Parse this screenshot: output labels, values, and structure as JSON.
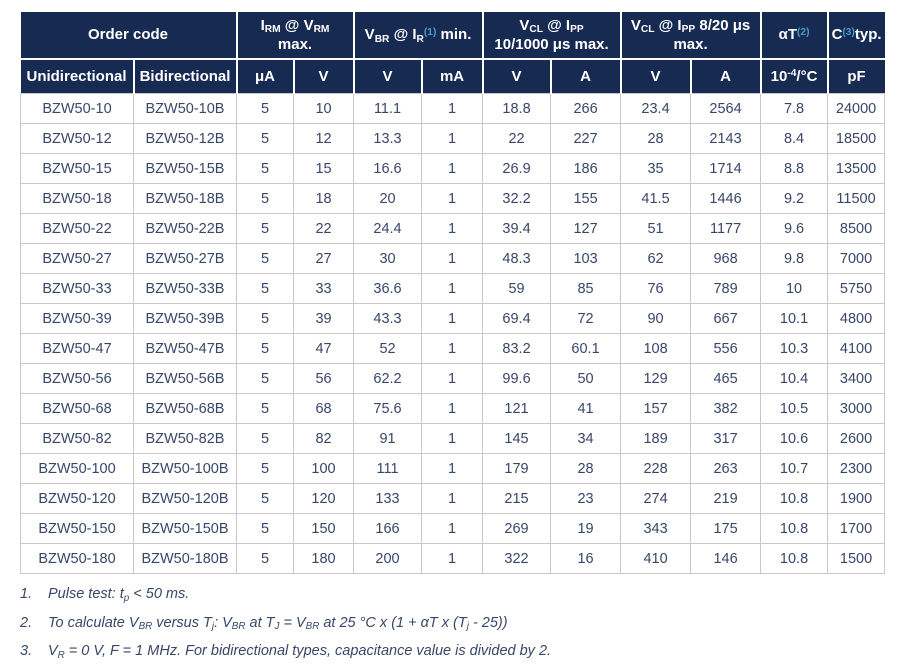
{
  "colors": {
    "header_bg": "#162a52",
    "footnote_ref_blue": "#4a9acd",
    "body_text": "#384668",
    "grid_line": "#c8c8c8"
  },
  "table": {
    "header": {
      "groups": [
        "Order code",
        "I~RM~ @ V~RM~\nmax.",
        "V~BR~ @ I~R~^(1)^ min.",
        "V~CL~ @ I~PP~\n10/1000 μs max.",
        "V~CL~ @ I~PP~ 8/20 μs\nmax.",
        "αT^(2)^",
        "C^(3)^typ."
      ],
      "units": [
        "Unidirectional",
        "Bidirectional",
        "μA",
        "V",
        "V",
        "mA",
        "V",
        "A",
        "V",
        "A",
        "10^-4^/°C",
        "pF"
      ]
    },
    "rows": [
      [
        "BZW50-10",
        "BZW50-10B",
        "5",
        "10",
        "11.1",
        "1",
        "18.8",
        "266",
        "23.4",
        "2564",
        "7.8",
        "24000"
      ],
      [
        "BZW50-12",
        "BZW50-12B",
        "5",
        "12",
        "13.3",
        "1",
        "22",
        "227",
        "28",
        "2143",
        "8.4",
        "18500"
      ],
      [
        "BZW50-15",
        "BZW50-15B",
        "5",
        "15",
        "16.6",
        "1",
        "26.9",
        "186",
        "35",
        "1714",
        "8.8",
        "13500"
      ],
      [
        "BZW50-18",
        "BZW50-18B",
        "5",
        "18",
        "20",
        "1",
        "32.2",
        "155",
        "41.5",
        "1446",
        "9.2",
        "11500"
      ],
      [
        "BZW50-22",
        "BZW50-22B",
        "5",
        "22",
        "24.4",
        "1",
        "39.4",
        "127",
        "51",
        "1177",
        "9.6",
        "8500"
      ],
      [
        "BZW50-27",
        "BZW50-27B",
        "5",
        "27",
        "30",
        "1",
        "48.3",
        "103",
        "62",
        "968",
        "9.8",
        "7000"
      ],
      [
        "BZW50-33",
        "BZW50-33B",
        "5",
        "33",
        "36.6",
        "1",
        "59",
        "85",
        "76",
        "789",
        "10",
        "5750"
      ],
      [
        "BZW50-39",
        "BZW50-39B",
        "5",
        "39",
        "43.3",
        "1",
        "69.4",
        "72",
        "90",
        "667",
        "10.1",
        "4800"
      ],
      [
        "BZW50-47",
        "BZW50-47B",
        "5",
        "47",
        "52",
        "1",
        "83.2",
        "60.1",
        "108",
        "556",
        "10.3",
        "4100"
      ],
      [
        "BZW50-56",
        "BZW50-56B",
        "5",
        "56",
        "62.2",
        "1",
        "99.6",
        "50",
        "129",
        "465",
        "10.4",
        "3400"
      ],
      [
        "BZW50-68",
        "BZW50-68B",
        "5",
        "68",
        "75.6",
        "1",
        "121",
        "41",
        "157",
        "382",
        "10.5",
        "3000"
      ],
      [
        "BZW50-82",
        "BZW50-82B",
        "5",
        "82",
        "91",
        "1",
        "145",
        "34",
        "189",
        "317",
        "10.6",
        "2600"
      ],
      [
        "BZW50-100",
        "BZW50-100B",
        "5",
        "100",
        "111",
        "1",
        "179",
        "28",
        "228",
        "263",
        "10.7",
        "2300"
      ],
      [
        "BZW50-120",
        "BZW50-120B",
        "5",
        "120",
        "133",
        "1",
        "215",
        "23",
        "274",
        "219",
        "10.8",
        "1900"
      ],
      [
        "BZW50-150",
        "BZW50-150B",
        "5",
        "150",
        "166",
        "1",
        "269",
        "19",
        "343",
        "175",
        "10.8",
        "1700"
      ],
      [
        "BZW50-180",
        "BZW50-180B",
        "5",
        "180",
        "200",
        "1",
        "322",
        "16",
        "410",
        "146",
        "10.8",
        "1500"
      ]
    ]
  },
  "footnotes": [
    {
      "num": "1.",
      "text": "Pulse test: t~p~ < 50 ms."
    },
    {
      "num": "2.",
      "text": "To calculate V~BR~ versus T~j~: V~BR~ at T~J~ = V~BR~ at 25 °C x (1 + αT x (T~j~ - 25))"
    },
    {
      "num": "3.",
      "text": "V~R~ = 0 V, F = 1 MHz. For bidirectional types, capacitance value is divided by 2."
    }
  ]
}
